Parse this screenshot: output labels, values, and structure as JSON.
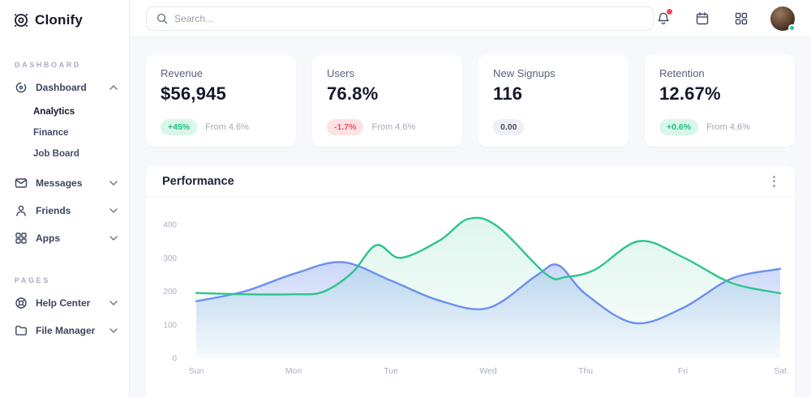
{
  "brand": {
    "name": "Clonify"
  },
  "topbar": {
    "search_placeholder": "Search...",
    "icons": [
      "bell-icon",
      "calendar-icon",
      "apps-grid-icon",
      "avatar"
    ]
  },
  "sidebar": {
    "sections": [
      {
        "title": "DASHBOARD",
        "items": [
          {
            "label": "Dashboard",
            "icon": "dashboard-icon",
            "expanded": true,
            "children": [
              {
                "label": "Analytics",
                "active": true
              },
              {
                "label": "Finance",
                "active": false
              },
              {
                "label": "Job Board",
                "active": false
              }
            ]
          },
          {
            "label": "Messages",
            "icon": "messages-icon",
            "expanded": false
          },
          {
            "label": "Friends",
            "icon": "friends-icon",
            "expanded": false
          },
          {
            "label": "Apps",
            "icon": "apps-icon",
            "expanded": false
          }
        ]
      },
      {
        "title": "PAGES",
        "items": [
          {
            "label": "Help Center",
            "icon": "help-icon",
            "expanded": false
          },
          {
            "label": "File Manager",
            "icon": "folder-icon",
            "expanded": false
          }
        ]
      }
    ]
  },
  "stats": [
    {
      "title": "Revenue",
      "value": "$56,945",
      "badge": "+45%",
      "badge_type": "positive",
      "note": "From 4.6%"
    },
    {
      "title": "Users",
      "value": "76.8%",
      "badge": "-1.7%",
      "badge_type": "negative",
      "note": "From 4.6%"
    },
    {
      "title": "New Signups",
      "value": "116",
      "badge": "0.00",
      "badge_type": "neutral",
      "note": ""
    },
    {
      "title": "Retention",
      "value": "12.67%",
      "badge": "+0.6%",
      "badge_type": "positive",
      "note": "From 4.6%"
    }
  ],
  "performance": {
    "title": "Performance"
  },
  "chart_data": {
    "type": "area",
    "title": "Performance",
    "x_labels": [
      "Sun",
      "Mon",
      "Tue",
      "Wed",
      "Thu",
      "Fri",
      "Sat"
    ],
    "y_ticks": [
      0,
      100,
      200,
      300,
      400
    ],
    "ylim": [
      0,
      400
    ],
    "grid": false,
    "legend": "none",
    "series": [
      {
        "name": "series-blue",
        "color": "#6b8ff2",
        "fill_from": "rgba(124,155,243,0.40)",
        "fill_to": "rgba(124,155,243,0.03)",
        "points": [
          [
            0,
            170
          ],
          [
            0.5,
            200
          ],
          [
            1,
            252
          ],
          [
            1.5,
            287
          ],
          [
            2,
            232
          ],
          [
            2.5,
            172
          ],
          [
            3,
            150
          ],
          [
            3.5,
            248
          ],
          [
            3.72,
            278
          ],
          [
            4,
            192
          ],
          [
            4.5,
            105
          ],
          [
            5,
            150
          ],
          [
            5.5,
            238
          ],
          [
            6,
            267
          ]
        ]
      },
      {
        "name": "series-green",
        "color": "#2ec48e",
        "fill_from": "rgba(46,196,142,0.16)",
        "fill_to": "rgba(46,196,142,0.02)",
        "points": [
          [
            0,
            195
          ],
          [
            0.5,
            191
          ],
          [
            1,
            191
          ],
          [
            1.3,
            198
          ],
          [
            1.6,
            255
          ],
          [
            1.85,
            338
          ],
          [
            2.1,
            300
          ],
          [
            2.5,
            352
          ],
          [
            2.8,
            417
          ],
          [
            3.1,
            393
          ],
          [
            3.6,
            250
          ],
          [
            3.8,
            243
          ],
          [
            4.1,
            265
          ],
          [
            4.55,
            350
          ],
          [
            5,
            302
          ],
          [
            5.5,
            225
          ],
          [
            6,
            194
          ]
        ]
      }
    ]
  }
}
